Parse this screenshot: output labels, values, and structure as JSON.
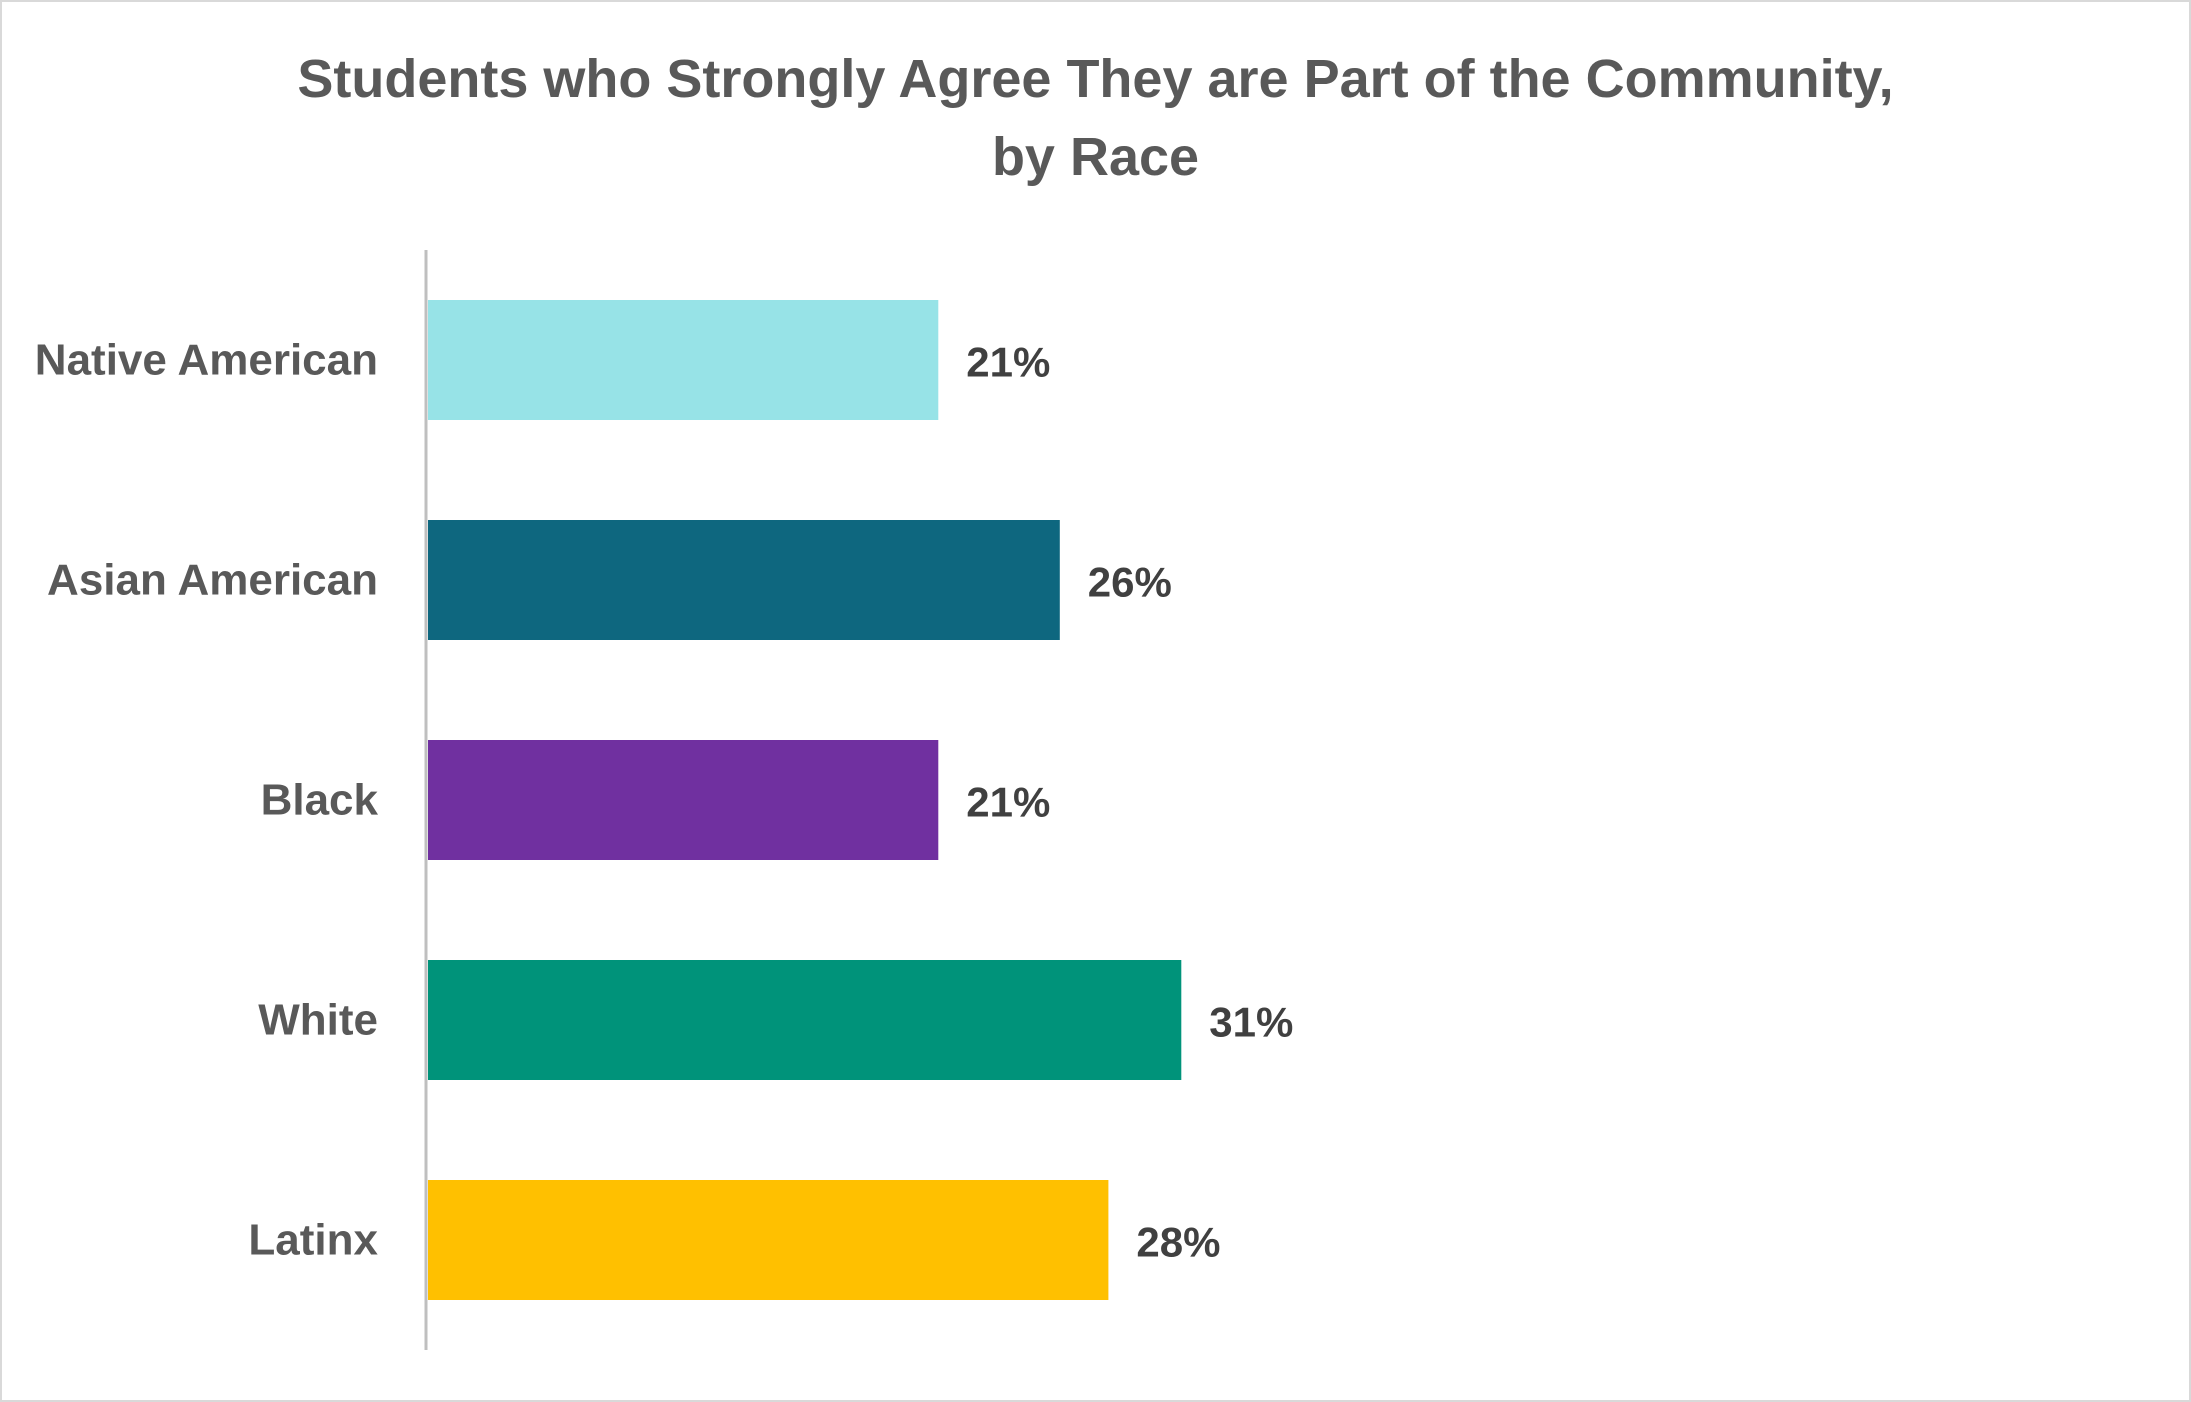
{
  "chart_data": {
    "type": "bar",
    "orientation": "horizontal",
    "title_lines": [
      "Students who Strongly Agree They are Part of the Community,",
      "by Race"
    ],
    "categories": [
      "Native American",
      "Asian American",
      "Black",
      "White",
      "Latinx"
    ],
    "values": [
      21,
      26,
      21,
      31,
      28
    ],
    "value_labels": [
      "21%",
      "26%",
      "21%",
      "31%",
      "28%"
    ],
    "colors": [
      "#97e3e7",
      "#0e677f",
      "#7030a0",
      "#00937a",
      "#ffc000"
    ],
    "xlim": [
      0,
      85
    ],
    "xlabel": "",
    "ylabel": "",
    "grid": false,
    "legend": "none"
  }
}
